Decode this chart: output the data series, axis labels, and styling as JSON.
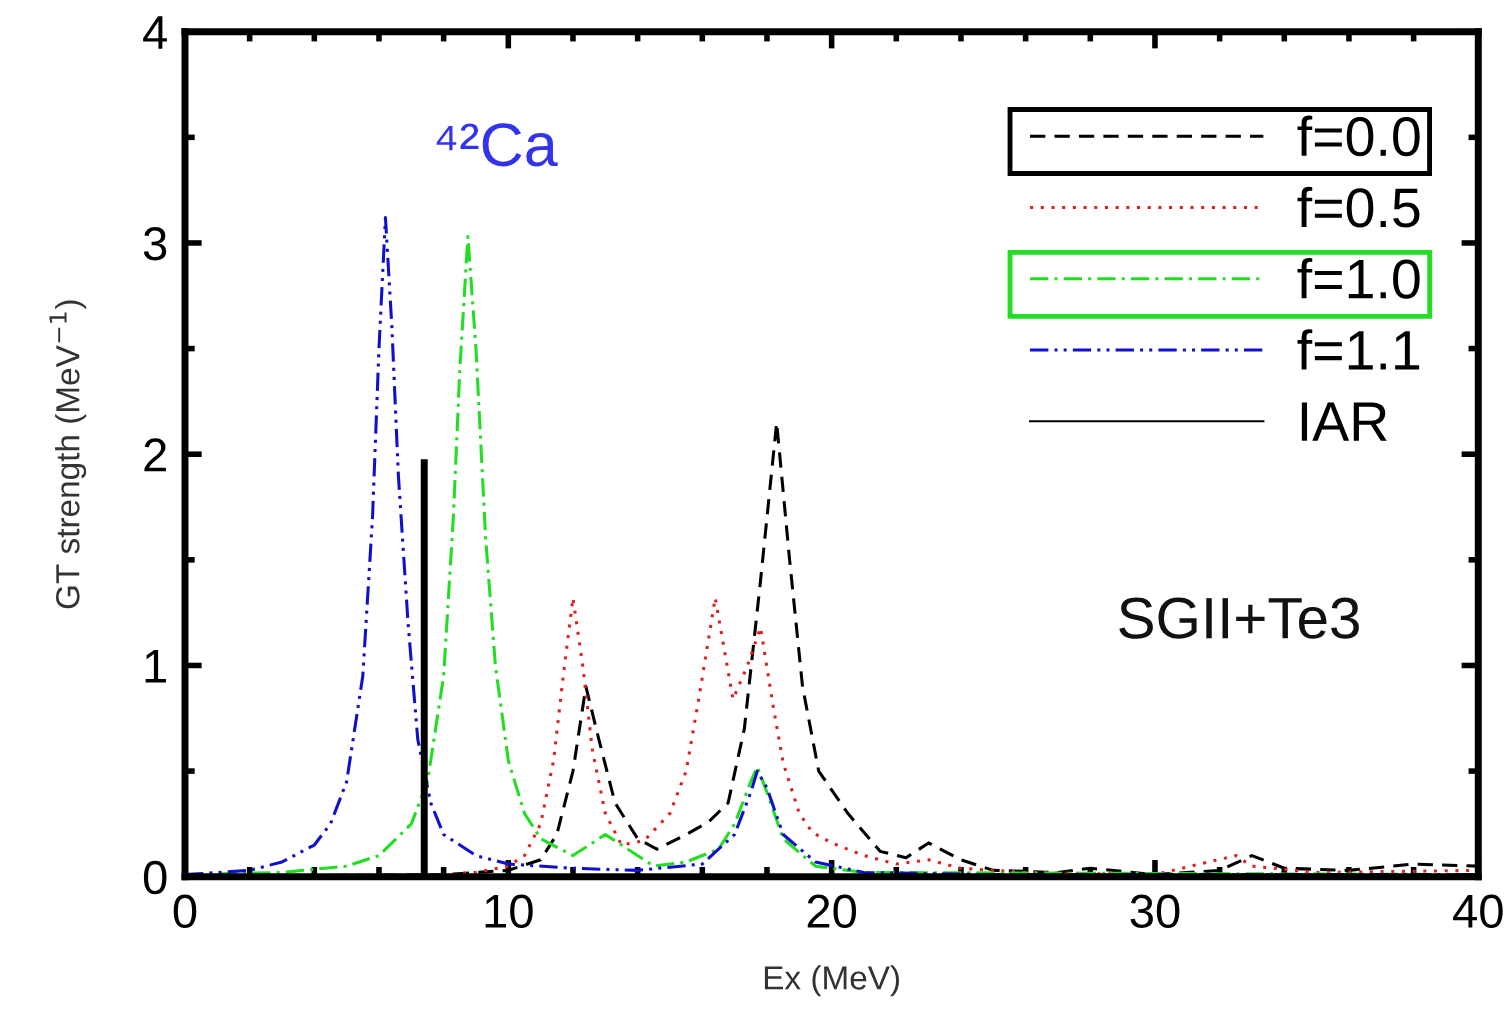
{
  "chart_data": {
    "type": "line",
    "xlabel": "Ex (MeV)",
    "ylabel": "GT strength (MeV$^{−1}$)",
    "xlim": [
      0,
      40
    ],
    "xticks": [
      0,
      10,
      20,
      30,
      40
    ],
    "ylim": [
      0,
      4
    ],
    "yticks": [
      0,
      1,
      2,
      3,
      4
    ],
    "grid": false,
    "legend": "top right",
    "marker": "none",
    "annotations": [
      "⁴²Ca",
      "SGII+Te3"
    ],
    "series": [
      {
        "name": "f=0.0",
        "color": "#000000",
        "line_style": "dashed",
        "x": [
          0,
          8,
          10,
          11,
          11.5,
          12,
          12.4,
          12.8,
          13.3,
          14,
          14.6,
          15.5,
          16.2,
          16.8,
          17.3,
          17.8,
          18.3,
          18.7,
          19.1,
          19.6,
          20.5,
          21.5,
          22.3,
          23,
          24,
          25,
          27,
          28,
          30,
          32,
          33,
          34,
          36,
          38,
          40
        ],
        "values": [
          0,
          0.01,
          0.03,
          0.08,
          0.2,
          0.5,
          0.9,
          0.65,
          0.35,
          0.18,
          0.13,
          0.2,
          0.26,
          0.35,
          0.7,
          1.4,
          2.15,
          1.5,
          0.9,
          0.5,
          0.3,
          0.12,
          0.09,
          0.16,
          0.08,
          0.03,
          0.02,
          0.04,
          0.01,
          0.03,
          0.1,
          0.04,
          0.03,
          0.06,
          0.05
        ]
      },
      {
        "name": "f=0.5",
        "color": "#e02020",
        "line_style": "dotted",
        "x": [
          0,
          8,
          9,
          10,
          10.5,
          11,
          11.4,
          11.7,
          12.0,
          12.3,
          12.6,
          13,
          13.5,
          14.2,
          15,
          15.5,
          15.9,
          16.4,
          16.95,
          17.4,
          17.8,
          18.2,
          18.5,
          19.0,
          19.4,
          20,
          21,
          22,
          23,
          24,
          26,
          30,
          32.5,
          33,
          35,
          40
        ],
        "values": [
          0,
          0.01,
          0.02,
          0.05,
          0.1,
          0.25,
          0.55,
          0.95,
          1.32,
          1.0,
          0.6,
          0.3,
          0.15,
          0.17,
          0.3,
          0.5,
          0.85,
          1.32,
          0.84,
          1.0,
          1.18,
          0.8,
          0.54,
          0.3,
          0.21,
          0.16,
          0.1,
          0.06,
          0.08,
          0.04,
          0.02,
          0.01,
          0.1,
          0.05,
          0.02,
          0.03
        ]
      },
      {
        "name": "f=1.0",
        "color": "#22dd22",
        "line_style": "dashdot",
        "x": [
          0,
          3,
          5,
          6,
          7,
          7.5,
          8,
          8.3,
          8.5,
          8.75,
          9.0,
          9.3,
          9.6,
          10,
          10.5,
          11,
          12,
          13,
          13.5,
          14.5,
          15.5,
          16.5,
          17,
          17.5,
          17.7,
          18,
          18.5,
          19.5,
          21,
          40
        ],
        "values": [
          0.01,
          0.02,
          0.05,
          0.1,
          0.25,
          0.45,
          0.95,
          1.7,
          2.4,
          3.03,
          2.5,
          1.6,
          1.0,
          0.55,
          0.3,
          0.18,
          0.1,
          0.2,
          0.15,
          0.05,
          0.07,
          0.13,
          0.25,
          0.45,
          0.52,
          0.4,
          0.18,
          0.05,
          0.02,
          0.01
        ]
      },
      {
        "name": "f=1.1",
        "color": "#1010cc",
        "line_style": "dashdotdot",
        "x": [
          0,
          2,
          3,
          4,
          4.5,
          5,
          5.5,
          5.8,
          6.0,
          6.2,
          6.4,
          6.6,
          6.9,
          7.2,
          7.6,
          8,
          9,
          10,
          12,
          14,
          16,
          17,
          17.5,
          17.7,
          18,
          18.5,
          19.5,
          21,
          25,
          40
        ],
        "values": [
          0.01,
          0.03,
          0.07,
          0.15,
          0.25,
          0.45,
          0.95,
          1.7,
          2.5,
          3.12,
          2.6,
          1.9,
          1.2,
          0.65,
          0.35,
          0.2,
          0.1,
          0.06,
          0.04,
          0.03,
          0.06,
          0.2,
          0.4,
          0.5,
          0.42,
          0.2,
          0.07,
          0.02,
          0.01,
          0.01
        ]
      },
      {
        "name": "IAR",
        "color": "#000000",
        "line_style": "solid",
        "x": [
          7.4,
          7.4
        ],
        "values": [
          0,
          1.96
        ]
      }
    ]
  }
}
